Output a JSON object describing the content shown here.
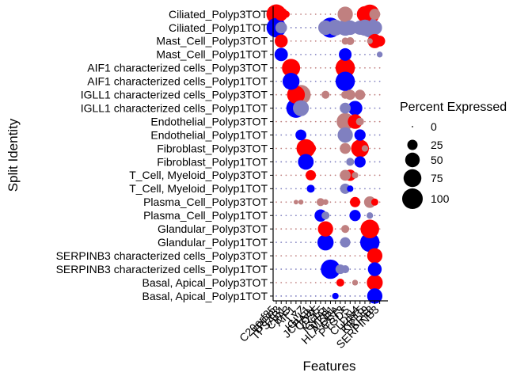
{
  "chart_data": {
    "type": "scatter",
    "subtype": "dot-plot",
    "xlabel": "Features",
    "ylabel": "Split Identity",
    "legend_title": "Percent Expressed",
    "legend_position": "right",
    "size_legend_values": [
      0,
      25,
      50,
      75,
      100
    ],
    "grid": false,
    "colors": {
      "polyp3": "#FF0000",
      "polyp1": "#0000FF",
      "mid_polyp3": "#C08080",
      "mid_polyp1": "#8080C0"
    },
    "visible_feature_labels": [
      "C20orf85",
      "TPPP3",
      "TPSAB1",
      "CPA3",
      "AIF1",
      "LYZ",
      "IGLL1",
      "JCHAIN",
      "CD3E",
      "CCL5",
      "IGHA1",
      "MZB1",
      "HLA-DRA",
      "CST3",
      "PTGDS",
      "CLDN4",
      "KRT5",
      "KRT19",
      "KRT8",
      "SERPINB3"
    ],
    "categories_y": [
      "Ciliated_Polyp3TOT",
      "Ciliated_Polyp1TOT",
      "Mast_Cell_Polyp3TOT",
      "Mast_Cell_Polyp1TOT",
      "AIF1 characterized cells_Polyp3TOT",
      "AIF1 characterized cells_Polyp1TOT",
      "IGLL1 characterized cells_Polyp3TOT",
      "IGLL1 characterized cells_Polyp1TOT",
      "Endothelial_Polyp3TOT",
      "Endothelial_Polyp1TOT",
      "Fibroblast_Polyp3TOT",
      "Fibroblast_Polyp1TOT",
      "T_Cell, Myeloid_Polyp3TOT",
      "T_Cell, Myeloid_Polyp1TOT",
      "Plasma_Cell_Polyp3TOT",
      "Plasma_Cell_Polyp1TOT",
      "Glandular_Polyp3TOT",
      "Glandular_Polyp1TOT",
      "SERPINB3 characterized cells_Polyp3TOT",
      "SERPINB3 characterized cells_Polyp1TOT",
      "Basal, Apical_Polyp3TOT",
      "Basal, Apical_Polyp1TOT"
    ],
    "n_features": 22,
    "points": [
      {
        "row": 0,
        "col": 0,
        "pct": 92,
        "level": "high"
      },
      {
        "row": 0,
        "col": 1,
        "pct": 40,
        "level": "high"
      },
      {
        "row": 0,
        "col": 2,
        "pct": 12,
        "level": "high"
      },
      {
        "row": 0,
        "col": 14,
        "pct": 55,
        "level": "mid"
      },
      {
        "row": 0,
        "col": 18,
        "pct": 62,
        "level": "high"
      },
      {
        "row": 0,
        "col": 19,
        "pct": 88,
        "level": "high"
      },
      {
        "row": 0,
        "col": 20,
        "pct": 28,
        "level": "mid"
      },
      {
        "row": 1,
        "col": 0,
        "pct": 90,
        "level": "high"
      },
      {
        "row": 1,
        "col": 1,
        "pct": 32,
        "level": "mid"
      },
      {
        "row": 1,
        "col": 10,
        "pct": 50,
        "level": "mid"
      },
      {
        "row": 1,
        "col": 11,
        "pct": 95,
        "level": "high"
      },
      {
        "row": 1,
        "col": 12,
        "pct": 60,
        "level": "mid"
      },
      {
        "row": 1,
        "col": 13,
        "pct": 40,
        "level": "mid"
      },
      {
        "row": 1,
        "col": 14,
        "pct": 62,
        "level": "mid"
      },
      {
        "row": 1,
        "col": 15,
        "pct": 50,
        "level": "mid"
      },
      {
        "row": 1,
        "col": 16,
        "pct": 28,
        "level": "mid"
      },
      {
        "row": 1,
        "col": 17,
        "pct": 48,
        "level": "mid"
      },
      {
        "row": 1,
        "col": 18,
        "pct": 62,
        "level": "mid"
      },
      {
        "row": 1,
        "col": 19,
        "pct": 88,
        "level": "mid"
      },
      {
        "row": 1,
        "col": 20,
        "pct": 50,
        "level": "mid"
      },
      {
        "row": 2,
        "col": 1,
        "pct": 40,
        "level": "high"
      },
      {
        "row": 2,
        "col": 14,
        "pct": 12,
        "level": "mid"
      },
      {
        "row": 2,
        "col": 15,
        "pct": 15,
        "level": "mid"
      },
      {
        "row": 2,
        "col": 19,
        "pct": 8,
        "level": "mid"
      },
      {
        "row": 2,
        "col": 20,
        "pct": 48,
        "level": "high"
      },
      {
        "row": 2,
        "col": 21,
        "pct": 28,
        "level": "high"
      },
      {
        "row": 3,
        "col": 1,
        "pct": 42,
        "level": "high"
      },
      {
        "row": 3,
        "col": 14,
        "pct": 38,
        "level": "high"
      },
      {
        "row": 3,
        "col": 21,
        "pct": 8,
        "level": "mid"
      },
      {
        "row": 4,
        "col": 3,
        "pct": 78,
        "level": "high"
      },
      {
        "row": 4,
        "col": 14,
        "pct": 88,
        "level": "high"
      },
      {
        "row": 5,
        "col": 3,
        "pct": 68,
        "level": "high"
      },
      {
        "row": 5,
        "col": 14,
        "pct": 88,
        "level": "high"
      },
      {
        "row": 6,
        "col": 4,
        "pct": 75,
        "level": "high"
      },
      {
        "row": 6,
        "col": 5,
        "pct": 90,
        "level": "mid"
      },
      {
        "row": 6,
        "col": 10,
        "pct": 15,
        "level": "mid"
      },
      {
        "row": 6,
        "col": 14,
        "pct": 15,
        "level": "mid"
      },
      {
        "row": 6,
        "col": 15,
        "pct": 25,
        "level": "mid"
      },
      {
        "row": 6,
        "col": 17,
        "pct": 25,
        "level": "mid"
      },
      {
        "row": 7,
        "col": 4,
        "pct": 88,
        "level": "high"
      },
      {
        "row": 7,
        "col": 5,
        "pct": 60,
        "level": "mid"
      },
      {
        "row": 7,
        "col": 14,
        "pct": 28,
        "level": "mid"
      },
      {
        "row": 7,
        "col": 16,
        "pct": 50,
        "level": "high"
      },
      {
        "row": 8,
        "col": 14,
        "pct": 70,
        "level": "mid"
      },
      {
        "row": 8,
        "col": 16,
        "pct": 50,
        "level": "high"
      },
      {
        "row": 8,
        "col": 17,
        "pct": 15,
        "level": "mid"
      },
      {
        "row": 9,
        "col": 5,
        "pct": 28,
        "level": "high"
      },
      {
        "row": 9,
        "col": 14,
        "pct": 55,
        "level": "mid"
      },
      {
        "row": 9,
        "col": 17,
        "pct": 30,
        "level": "high"
      },
      {
        "row": 10,
        "col": 6,
        "pct": 82,
        "level": "high"
      },
      {
        "row": 10,
        "col": 7,
        "pct": 25,
        "level": "high"
      },
      {
        "row": 10,
        "col": 14,
        "pct": 28,
        "level": "mid"
      },
      {
        "row": 10,
        "col": 17,
        "pct": 75,
        "level": "high"
      },
      {
        "row": 10,
        "col": 18,
        "pct": 10,
        "level": "mid"
      },
      {
        "row": 11,
        "col": 6,
        "pct": 58,
        "level": "high"
      },
      {
        "row": 11,
        "col": 15,
        "pct": 15,
        "level": "mid"
      },
      {
        "row": 11,
        "col": 17,
        "pct": 30,
        "level": "high"
      },
      {
        "row": 12,
        "col": 7,
        "pct": 25,
        "level": "high"
      },
      {
        "row": 12,
        "col": 14,
        "pct": 28,
        "level": "mid"
      },
      {
        "row": 12,
        "col": 15,
        "pct": 30,
        "level": "high"
      },
      {
        "row": 12,
        "col": 16,
        "pct": 10,
        "level": "mid"
      },
      {
        "row": 13,
        "col": 7,
        "pct": 15,
        "level": "high"
      },
      {
        "row": 13,
        "col": 14,
        "pct": 25,
        "level": "mid"
      },
      {
        "row": 13,
        "col": 15,
        "pct": 10,
        "level": "high"
      },
      {
        "row": 14,
        "col": 4,
        "pct": 5,
        "level": "mid"
      },
      {
        "row": 14,
        "col": 5,
        "pct": 6,
        "level": "mid"
      },
      {
        "row": 14,
        "col": 9,
        "pct": 15,
        "level": "mid"
      },
      {
        "row": 14,
        "col": 10,
        "pct": 8,
        "level": "mid"
      },
      {
        "row": 14,
        "col": 16,
        "pct": 25,
        "level": "high"
      },
      {
        "row": 14,
        "col": 19,
        "pct": 32,
        "level": "mid"
      },
      {
        "row": 14,
        "col": 20,
        "pct": 12,
        "level": "high"
      },
      {
        "row": 15,
        "col": 9,
        "pct": 35,
        "level": "high"
      },
      {
        "row": 15,
        "col": 10,
        "pct": 15,
        "level": "mid"
      },
      {
        "row": 15,
        "col": 16,
        "pct": 30,
        "level": "high"
      },
      {
        "row": 15,
        "col": 19,
        "pct": 10,
        "level": "mid"
      },
      {
        "row": 16,
        "col": 10,
        "pct": 55,
        "level": "high"
      },
      {
        "row": 16,
        "col": 14,
        "pct": 15,
        "level": "mid"
      },
      {
        "row": 16,
        "col": 19,
        "pct": 82,
        "level": "high"
      },
      {
        "row": 17,
        "col": 10,
        "pct": 62,
        "level": "high"
      },
      {
        "row": 17,
        "col": 14,
        "pct": 25,
        "level": "mid"
      },
      {
        "row": 17,
        "col": 19,
        "pct": 88,
        "level": "high"
      },
      {
        "row": 18,
        "col": 20,
        "pct": 55,
        "level": "high"
      },
      {
        "row": 19,
        "col": 11,
        "pct": 88,
        "level": "high"
      },
      {
        "row": 19,
        "col": 13,
        "pct": 22,
        "level": "mid"
      },
      {
        "row": 19,
        "col": 14,
        "pct": 15,
        "level": "mid"
      },
      {
        "row": 19,
        "col": 20,
        "pct": 45,
        "level": "high"
      },
      {
        "row": 20,
        "col": 13,
        "pct": 15,
        "level": "high"
      },
      {
        "row": 20,
        "col": 16,
        "pct": 8,
        "level": "mid"
      },
      {
        "row": 20,
        "col": 20,
        "pct": 60,
        "level": "high"
      },
      {
        "row": 21,
        "col": 12,
        "pct": 10,
        "level": "high"
      },
      {
        "row": 21,
        "col": 20,
        "pct": 55,
        "level": "high"
      }
    ]
  }
}
